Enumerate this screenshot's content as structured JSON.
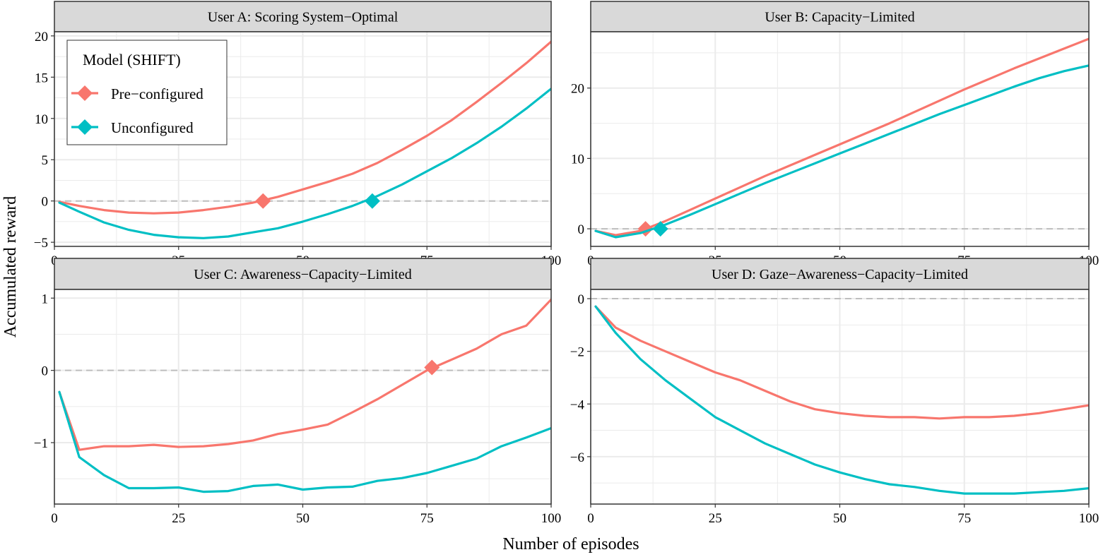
{
  "figure": {
    "xlabel": "Number of episodes",
    "ylabel": "Accumulated reward",
    "legend": {
      "title": "Model (SHIFT)",
      "position": "top-left of first panel",
      "entries": [
        {
          "label": "Pre−configured",
          "color": "#F8766D"
        },
        {
          "label": "Unconfigured",
          "color": "#00BFC4"
        }
      ]
    },
    "colors": {
      "strip_bg": "#D9D9D9",
      "grid": "#EBEBEB",
      "zero_line": "#BEBEBE",
      "frame": "#333333"
    }
  },
  "chart_data": [
    {
      "type": "line",
      "title": "User A: Scoring System−Optimal",
      "xlim": [
        0,
        100
      ],
      "ylim": [
        -5.5,
        20.5
      ],
      "xticks": [
        0,
        25,
        50,
        75,
        100
      ],
      "yticks": [
        -5,
        0,
        5,
        10,
        15,
        20
      ],
      "ytick_labels": [
        "−5",
        "0",
        "5",
        "10",
        "15",
        "20"
      ],
      "x": [
        1,
        5,
        10,
        15,
        20,
        25,
        30,
        35,
        40,
        45,
        50,
        55,
        60,
        65,
        70,
        75,
        80,
        85,
        90,
        95,
        100
      ],
      "series": [
        {
          "name": "Pre−configured",
          "color": "#F8766D",
          "values": [
            -0.1,
            -0.6,
            -1.1,
            -1.4,
            -1.5,
            -1.4,
            -1.1,
            -0.7,
            -0.2,
            0.5,
            1.4,
            2.3,
            3.3,
            4.6,
            6.2,
            7.9,
            9.8,
            12.0,
            14.3,
            16.7,
            19.3
          ],
          "crossover": {
            "x": 42,
            "y": 0
          }
        },
        {
          "name": "Unconfigured",
          "color": "#00BFC4",
          "values": [
            -0.2,
            -1.3,
            -2.6,
            -3.5,
            -4.1,
            -4.4,
            -4.5,
            -4.3,
            -3.8,
            -3.3,
            -2.5,
            -1.6,
            -0.6,
            0.6,
            2.0,
            3.6,
            5.2,
            7.0,
            9.0,
            11.2,
            13.6
          ],
          "crossover": {
            "x": 64,
            "y": 0
          }
        }
      ]
    },
    {
      "type": "line",
      "title": "User B: Capacity−Limited",
      "xlim": [
        0,
        100
      ],
      "ylim": [
        -2.5,
        28
      ],
      "xticks": [
        0,
        25,
        50,
        75,
        100
      ],
      "yticks": [
        0,
        10,
        20
      ],
      "ytick_labels": [
        "0",
        "10",
        "20"
      ],
      "x": [
        1,
        5,
        10,
        15,
        20,
        25,
        30,
        35,
        40,
        45,
        50,
        55,
        60,
        65,
        70,
        75,
        80,
        85,
        90,
        95,
        100
      ],
      "series": [
        {
          "name": "Pre−configured",
          "color": "#F8766D",
          "values": [
            -0.3,
            -0.9,
            -0.3,
            1.1,
            2.7,
            4.3,
            5.9,
            7.5,
            9.0,
            10.5,
            12.0,
            13.5,
            15.0,
            16.6,
            18.2,
            19.8,
            21.3,
            22.8,
            24.2,
            25.6,
            27.0
          ],
          "crossover": {
            "x": 11,
            "y": 0
          }
        },
        {
          "name": "Unconfigured",
          "color": "#00BFC4",
          "values": [
            -0.3,
            -1.2,
            -0.6,
            0.6,
            2.0,
            3.5,
            5.0,
            6.5,
            7.9,
            9.3,
            10.7,
            12.1,
            13.5,
            14.9,
            16.3,
            17.6,
            18.9,
            20.2,
            21.4,
            22.4,
            23.2
          ],
          "crossover": {
            "x": 14,
            "y": 0
          }
        }
      ]
    },
    {
      "type": "line",
      "title": "User C: Awareness−Capacity−Limited",
      "xlim": [
        0,
        100
      ],
      "ylim": [
        -1.85,
        1.12
      ],
      "xticks": [
        0,
        25,
        50,
        75,
        100
      ],
      "yticks": [
        -1,
        0,
        1
      ],
      "ytick_labels": [
        "−1",
        "0",
        "1"
      ],
      "x": [
        1,
        5,
        10,
        15,
        20,
        25,
        30,
        35,
        40,
        45,
        50,
        55,
        60,
        65,
        70,
        75,
        80,
        85,
        90,
        95,
        100
      ],
      "series": [
        {
          "name": "Pre−configured",
          "color": "#F8766D",
          "values": [
            -0.3,
            -1.1,
            -1.05,
            -1.05,
            -1.03,
            -1.06,
            -1.05,
            -1.02,
            -0.97,
            -0.88,
            -0.82,
            -0.75,
            -0.58,
            -0.4,
            -0.2,
            0.0,
            0.15,
            0.3,
            0.5,
            0.62,
            0.98
          ],
          "crossover": {
            "x": 76,
            "y": 0.04
          }
        },
        {
          "name": "Unconfigured",
          "color": "#00BFC4",
          "values": [
            -0.3,
            -1.2,
            -1.45,
            -1.63,
            -1.63,
            -1.62,
            -1.68,
            -1.67,
            -1.6,
            -1.58,
            -1.65,
            -1.62,
            -1.61,
            -1.53,
            -1.49,
            -1.42,
            -1.32,
            -1.22,
            -1.05,
            -0.93,
            -0.8
          ]
        }
      ]
    },
    {
      "type": "line",
      "title": "User D: Gaze−Awareness−Capacity−Limited",
      "xlim": [
        0,
        100
      ],
      "ylim": [
        -7.8,
        0.35
      ],
      "xticks": [
        0,
        25,
        50,
        75,
        100
      ],
      "yticks": [
        -6,
        -4,
        -2,
        0
      ],
      "ytick_labels": [
        "−6",
        "−4",
        "−2",
        "0"
      ],
      "x": [
        1,
        5,
        10,
        15,
        20,
        25,
        30,
        35,
        40,
        45,
        50,
        55,
        60,
        65,
        70,
        75,
        80,
        85,
        90,
        95,
        100
      ],
      "series": [
        {
          "name": "Pre−configured",
          "color": "#F8766D",
          "values": [
            -0.3,
            -1.1,
            -1.6,
            -2.0,
            -2.4,
            -2.8,
            -3.1,
            -3.5,
            -3.9,
            -4.2,
            -4.35,
            -4.45,
            -4.5,
            -4.5,
            -4.55,
            -4.5,
            -4.5,
            -4.45,
            -4.35,
            -4.2,
            -4.05
          ]
        },
        {
          "name": "Unconfigured",
          "color": "#00BFC4",
          "values": [
            -0.3,
            -1.3,
            -2.3,
            -3.1,
            -3.8,
            -4.5,
            -5.0,
            -5.5,
            -5.9,
            -6.3,
            -6.6,
            -6.85,
            -7.05,
            -7.15,
            -7.3,
            -7.4,
            -7.4,
            -7.4,
            -7.35,
            -7.3,
            -7.2
          ]
        }
      ]
    }
  ]
}
